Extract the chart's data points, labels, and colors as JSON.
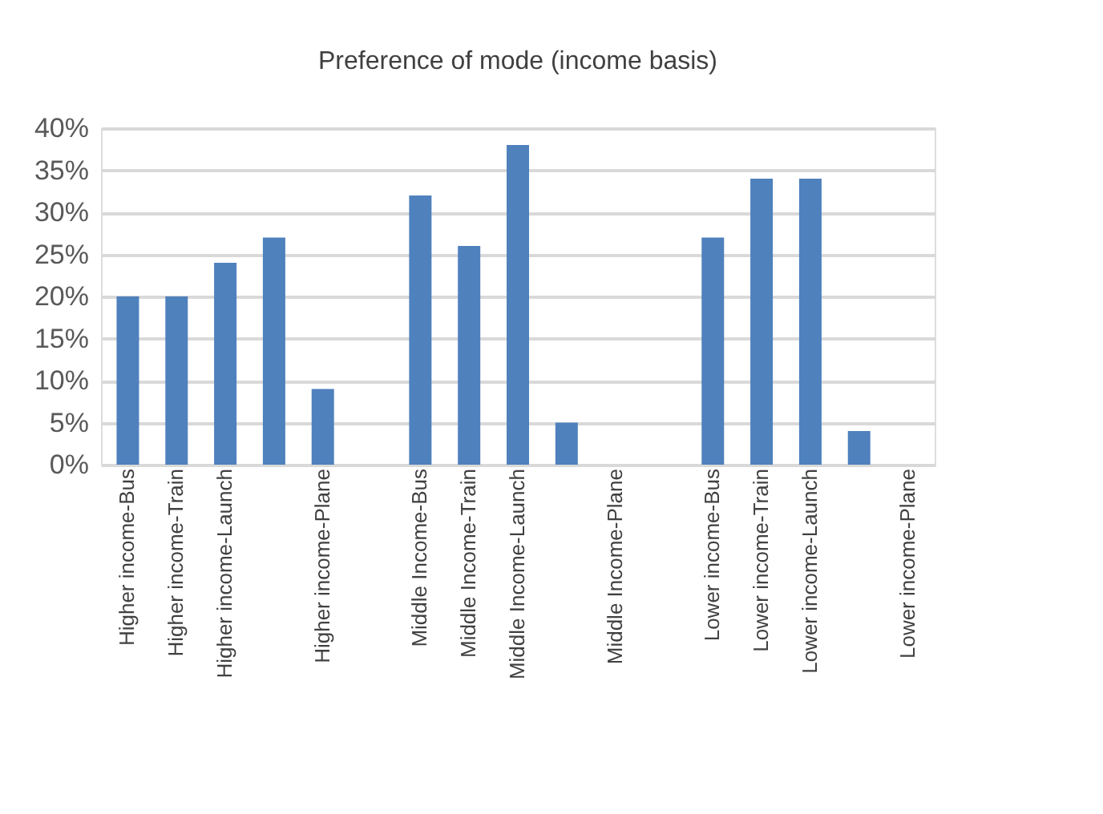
{
  "chart_data": {
    "type": "bar",
    "title": "Preference of mode (income basis)",
    "categories": [
      "Higher income-Bus",
      "Higher income-Train",
      "Higher income-Launch",
      null,
      "Higher income-Plane",
      null,
      "Middle Income-Bus",
      "Middle Income-Train",
      "Middle Income-Launch",
      null,
      "Middle Income-Plane",
      null,
      "Lower income-Bus",
      "Lower income-Train",
      "Lower income-Launch",
      null,
      "Lower income-Plane"
    ],
    "values": [
      20,
      20,
      24,
      27,
      9,
      null,
      32,
      26,
      38,
      5,
      0,
      null,
      27,
      34,
      34,
      4,
      0
    ],
    "color": "#4f81bd",
    "ylim": [
      0,
      40
    ],
    "yticks": [
      {
        "value": 0,
        "label": "0%"
      },
      {
        "value": 5,
        "label": "5%"
      },
      {
        "value": 10,
        "label": "10%"
      },
      {
        "value": 15,
        "label": "15%"
      },
      {
        "value": 20,
        "label": "20%"
      },
      {
        "value": 25,
        "label": "25%"
      },
      {
        "value": 30,
        "label": "30%"
      },
      {
        "value": 35,
        "label": "35%"
      },
      {
        "value": 40,
        "label": "40%"
      }
    ],
    "grid": "y"
  }
}
